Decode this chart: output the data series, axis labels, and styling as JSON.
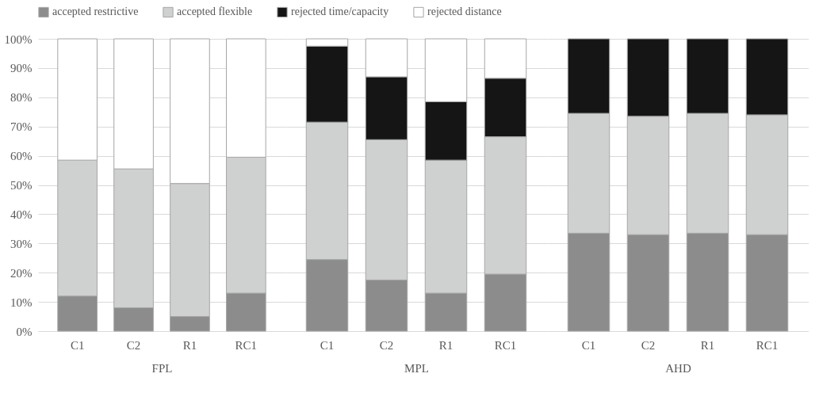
{
  "chart_data": [
    {
      "type": "bar",
      "stacked": true,
      "xlabel": "FPL",
      "categories": [
        "C1",
        "C2",
        "R1",
        "RC1"
      ],
      "ylim": [
        0,
        100
      ],
      "yticks": [
        {
          "value": 0,
          "label": "0%"
        },
        {
          "value": 10,
          "label": "10%"
        },
        {
          "value": 20,
          "label": "20%"
        },
        {
          "value": 30,
          "label": "30%"
        },
        {
          "value": 40,
          "label": "40%"
        },
        {
          "value": 50,
          "label": "50%"
        },
        {
          "value": 60,
          "label": "60%"
        },
        {
          "value": 70,
          "label": "70%"
        },
        {
          "value": 80,
          "label": "80%"
        },
        {
          "value": 90,
          "label": "90%"
        },
        {
          "value": 100,
          "label": "100%"
        }
      ],
      "grid": "y",
      "legend": "top",
      "series": [
        {
          "name": "accepted restrictive",
          "color": "#8c8c8c",
          "values": [
            12,
            8,
            5,
            13
          ]
        },
        {
          "name": "accepted flexible",
          "color": "#cfd1d0",
          "values": [
            46.5,
            47.5,
            45.5,
            46.5
          ]
        },
        {
          "name": "rejected time/capacity",
          "color": "#151515",
          "values": [
            0,
            0,
            0,
            0
          ]
        },
        {
          "name": "rejected distance",
          "color": "#ffffff",
          "values": [
            41.5,
            44.5,
            49.5,
            40.5
          ]
        }
      ]
    },
    {
      "type": "bar",
      "stacked": true,
      "xlabel": "MPL",
      "categories": [
        "C1",
        "C2",
        "R1",
        "RC1"
      ],
      "ylim": [
        0,
        100
      ],
      "yticks": [
        0,
        10,
        20,
        30,
        40,
        50,
        60,
        70,
        80,
        90,
        100
      ],
      "grid": "y",
      "tick_labels": "x",
      "series": [
        {
          "color": "#8c8c8c",
          "values": [
            24.5,
            17.5,
            13,
            19.5
          ]
        },
        {
          "color": "#cfd1d0",
          "values": [
            47,
            48,
            45.5,
            47
          ]
        },
        {
          "color": "#151515",
          "values": [
            26,
            21.5,
            20,
            20
          ]
        },
        {
          "color": "#ffffff",
          "values": [
            2.5,
            13,
            21.5,
            13.5
          ]
        }
      ]
    },
    {
      "type": "bar",
      "stacked": true,
      "xlabel": "AHD",
      "categories": [
        "C1",
        "C2",
        "R1",
        "RC1"
      ],
      "ylim": [
        0,
        100
      ],
      "yticks": [
        0,
        10,
        20,
        30,
        40,
        50,
        60,
        70,
        80,
        90,
        100
      ],
      "grid": "y",
      "tick_labels": "x",
      "series": [
        {
          "color": "#8c8c8c",
          "values": [
            33.5,
            33,
            33.5,
            33
          ]
        },
        {
          "color": "#cfd1d0",
          "values": [
            41,
            40.5,
            41,
            41
          ]
        },
        {
          "color": "#151515",
          "values": [
            25.5,
            26.5,
            25.5,
            26
          ]
        },
        {
          "color": "#ffffff",
          "values": [
            0,
            0,
            0,
            0
          ]
        }
      ]
    }
  ]
}
